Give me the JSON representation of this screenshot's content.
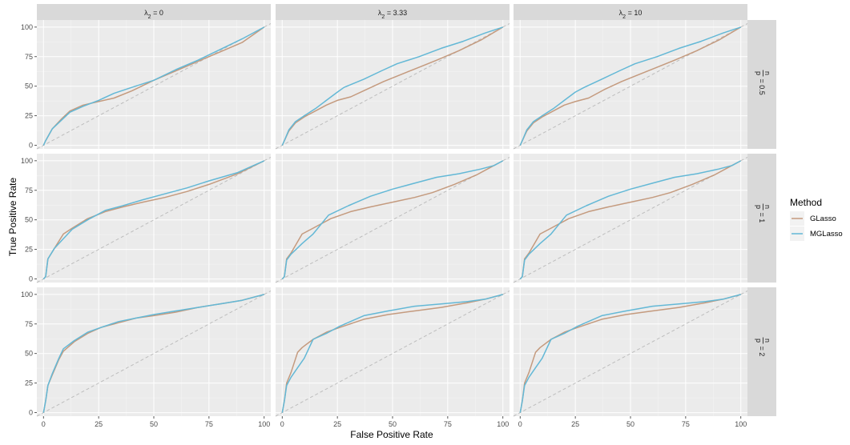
{
  "chart_data": {
    "type": "line",
    "xlabel": "False Positive Rate",
    "ylabel": "True Positive Rate",
    "xlim": [
      -3,
      103
    ],
    "ylim": [
      -3,
      106
    ],
    "x_ticks": [
      0,
      25,
      50,
      75,
      100
    ],
    "y_ticks": [
      0,
      25,
      50,
      75,
      100
    ],
    "grid": true,
    "legend_position": "right",
    "legend": {
      "title": "Method",
      "entries": [
        {
          "name": "GLasso",
          "color": "#c49a7e"
        },
        {
          "name": "MGLasso",
          "color": "#63b8d6"
        }
      ]
    },
    "columns": [
      {
        "base": "λ",
        "sub": "2",
        "rest": " = 0"
      },
      {
        "base": "λ",
        "sub": "2",
        "rest": " = 3.33"
      },
      {
        "base": "λ",
        "sub": "2",
        "rest": " = 10"
      }
    ],
    "rows": [
      {
        "num": "n",
        "den": "p",
        "rest": " = 0.5"
      },
      {
        "num": "n",
        "den": "p",
        "rest": " = 1"
      },
      {
        "num": "n",
        "den": "p",
        "rest": " = 2"
      }
    ],
    "diagonal_color": "#bdbdbd",
    "panels": [
      [
        {
          "series": [
            {
              "name": "GLasso",
              "x": [
                0,
                1,
                4,
                8,
                12,
                18,
                25,
                32,
                40,
                50,
                60,
                70,
                80,
                90,
                100
              ],
              "y": [
                0,
                4,
                14,
                22,
                29,
                34,
                37,
                40,
                46,
                55,
                63,
                71,
                79,
                87,
                100
              ]
            },
            {
              "name": "MGLasso",
              "x": [
                0,
                1,
                4,
                8,
                12,
                18,
                25,
                32,
                40,
                50,
                60,
                70,
                80,
                90,
                100
              ],
              "y": [
                0,
                4,
                14,
                21,
                28,
                33,
                38,
                44,
                49,
                55,
                64,
                72,
                81,
                90,
                100
              ]
            }
          ]
        },
        {
          "series": [
            {
              "name": "GLasso",
              "x": [
                0,
                1,
                3,
                6,
                10,
                15,
                20,
                25,
                31,
                38,
                46,
                54,
                62,
                70,
                80,
                90,
                100
              ],
              "y": [
                0,
                4,
                12,
                19,
                24,
                29,
                34,
                38,
                41,
                47,
                54,
                60,
                66,
                72,
                80,
                89,
                100
              ]
            },
            {
              "name": "MGLasso",
              "x": [
                0,
                1,
                3,
                6,
                10,
                15,
                20,
                25,
                28,
                37,
                45,
                52,
                62,
                72,
                82,
                92,
                100
              ],
              "y": [
                0,
                4,
                13,
                20,
                25,
                31,
                38,
                45,
                49,
                56,
                63,
                69,
                75,
                82,
                88,
                95,
                100
              ]
            }
          ]
        },
        {
          "series": [
            {
              "name": "GLasso",
              "x": [
                0,
                1,
                3,
                6,
                10,
                15,
                20,
                25,
                31,
                38,
                46,
                54,
                62,
                70,
                80,
                90,
                100
              ],
              "y": [
                0,
                4,
                12,
                19,
                24,
                29,
                34,
                37,
                40,
                47,
                54,
                60,
                66,
                72,
                80,
                89,
                100
              ]
            },
            {
              "name": "MGLasso",
              "x": [
                0,
                1,
                3,
                6,
                10,
                15,
                20,
                25,
                29,
                37,
                45,
                52,
                62,
                72,
                82,
                92,
                100
              ],
              "y": [
                0,
                4,
                13,
                20,
                25,
                31,
                38,
                45,
                49,
                56,
                63,
                69,
                75,
                82,
                88,
                95,
                100
              ]
            }
          ]
        }
      ],
      [
        {
          "series": [
            {
              "name": "GLasso",
              "x": [
                0,
                1,
                2,
                5,
                9,
                13,
                20,
                28,
                36,
                45,
                55,
                65,
                75,
                88,
                100
              ],
              "y": [
                0,
                2,
                17,
                26,
                38,
                43,
                51,
                57,
                61,
                65,
                69,
                74,
                80,
                89,
                100
              ]
            },
            {
              "name": "MGLasso",
              "x": [
                0,
                1,
                2,
                5,
                9,
                13,
                20,
                28,
                36,
                45,
                55,
                65,
                75,
                88,
                100
              ],
              "y": [
                0,
                2,
                17,
                26,
                34,
                42,
                50,
                58,
                62,
                67,
                72,
                77,
                83,
                90,
                100
              ]
            }
          ]
        },
        {
          "series": [
            {
              "name": "GLasso",
              "x": [
                0,
                1,
                2,
                4,
                9,
                14,
                22,
                31,
                40,
                50,
                60,
                68,
                78,
                88,
                94,
                100
              ],
              "y": [
                0,
                2,
                17,
                22,
                38,
                43,
                51,
                57,
                61,
                65,
                69,
                73,
                80,
                88,
                94,
                100
              ]
            },
            {
              "name": "MGLasso",
              "x": [
                0,
                1,
                2,
                4,
                9,
                14,
                21,
                30,
                40,
                50,
                60,
                70,
                80,
                90,
                96,
                100
              ],
              "y": [
                0,
                2,
                16,
                21,
                30,
                38,
                54,
                62,
                70,
                76,
                81,
                86,
                89,
                93,
                96,
                100
              ]
            }
          ]
        },
        {
          "series": [
            {
              "name": "GLasso",
              "x": [
                0,
                1,
                2,
                4,
                9,
                14,
                22,
                31,
                40,
                50,
                60,
                68,
                78,
                88,
                94,
                100
              ],
              "y": [
                0,
                2,
                17,
                22,
                38,
                43,
                51,
                57,
                61,
                65,
                69,
                73,
                80,
                88,
                94,
                100
              ]
            },
            {
              "name": "MGLasso",
              "x": [
                0,
                1,
                2,
                4,
                9,
                14,
                21,
                30,
                40,
                50,
                60,
                70,
                80,
                90,
                96,
                100
              ],
              "y": [
                0,
                2,
                16,
                21,
                30,
                38,
                54,
                62,
                70,
                76,
                81,
                86,
                89,
                93,
                96,
                100
              ]
            }
          ]
        }
      ],
      [
        {
          "series": [
            {
              "name": "GLasso",
              "x": [
                0,
                1,
                2,
                4,
                7,
                9,
                14,
                20,
                26,
                34,
                42,
                50,
                60,
                70,
                80,
                90,
                100
              ],
              "y": [
                0,
                10,
                23,
                32,
                45,
                52,
                60,
                67,
                72,
                76,
                80,
                82,
                85,
                89,
                92,
                95,
                100
              ]
            },
            {
              "name": "MGLasso",
              "x": [
                0,
                1,
                2,
                4,
                7,
                9,
                14,
                20,
                26,
                34,
                42,
                50,
                60,
                70,
                80,
                90,
                100
              ],
              "y": [
                0,
                10,
                23,
                33,
                46,
                54,
                61,
                68,
                72,
                77,
                80,
                83,
                86,
                89,
                92,
                95,
                100
              ]
            }
          ]
        },
        {
          "series": [
            {
              "name": "GLasso",
              "x": [
                0,
                1,
                2,
                4,
                7,
                9,
                14,
                20,
                26,
                37,
                48,
                60,
                72,
                84,
                92,
                100
              ],
              "y": [
                0,
                10,
                25,
                34,
                51,
                55,
                62,
                68,
                72,
                79,
                83,
                86,
                89,
                93,
                96,
                100
              ]
            },
            {
              "name": "MGLasso",
              "x": [
                0,
                1,
                2,
                4,
                7,
                10,
                14,
                20,
                26,
                37,
                48,
                60,
                72,
                84,
                92,
                100
              ],
              "y": [
                0,
                10,
                23,
                30,
                38,
                46,
                62,
                67,
                73,
                82,
                86,
                90,
                92,
                94,
                96,
                100
              ]
            }
          ]
        },
        {
          "series": [
            {
              "name": "GLasso",
              "x": [
                0,
                1,
                2,
                4,
                7,
                9,
                14,
                20,
                26,
                37,
                48,
                60,
                72,
                84,
                92,
                100
              ],
              "y": [
                0,
                10,
                25,
                34,
                51,
                55,
                62,
                68,
                72,
                79,
                83,
                86,
                89,
                93,
                96,
                100
              ]
            },
            {
              "name": "MGLasso",
              "x": [
                0,
                1,
                2,
                4,
                7,
                10,
                14,
                20,
                26,
                37,
                48,
                60,
                72,
                84,
                92,
                100
              ],
              "y": [
                0,
                10,
                23,
                30,
                38,
                46,
                62,
                67,
                73,
                82,
                86,
                90,
                92,
                94,
                96,
                100
              ]
            }
          ]
        }
      ]
    ]
  }
}
